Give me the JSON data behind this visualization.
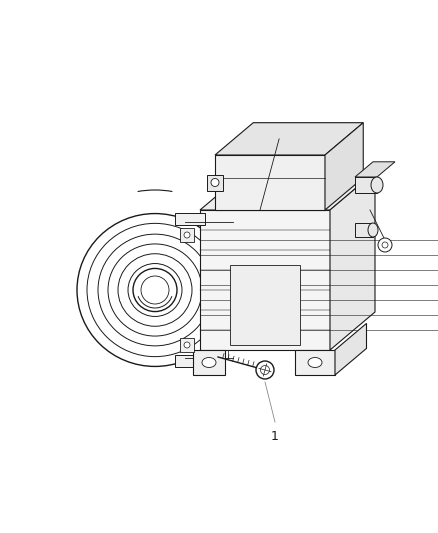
{
  "background_color": "#ffffff",
  "line_color": "#1a1a1a",
  "figure_width": 4.38,
  "figure_height": 5.33,
  "dpi": 100,
  "label_text": "1",
  "label_fontsize": 9
}
